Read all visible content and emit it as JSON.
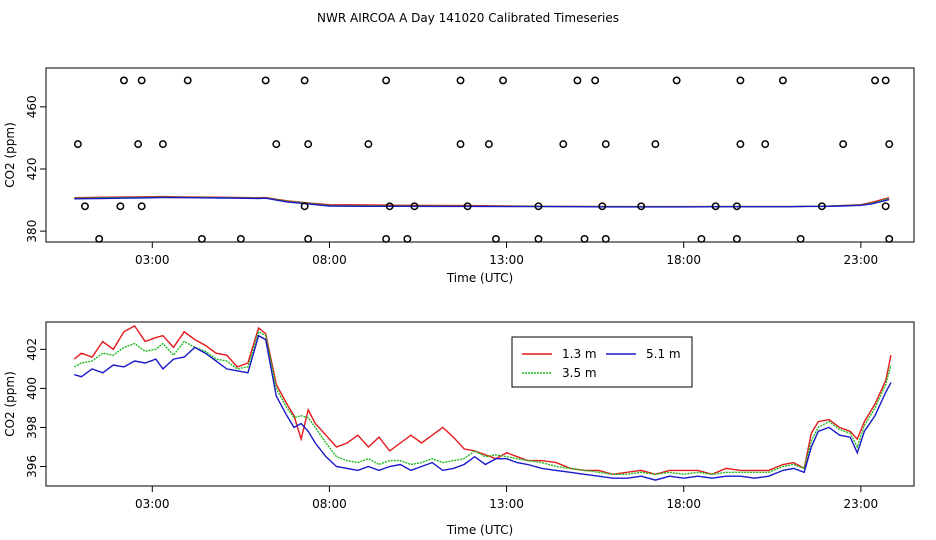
{
  "chart_data": [
    {
      "type": "scatter",
      "title": "NWR AIRCOA A  Day 141020  Calibrated Timeseries",
      "xlabel": "Time (UTC)",
      "ylabel": "CO2 (ppm)",
      "xlim": [
        0,
        24.5
      ],
      "ylim": [
        373,
        485
      ],
      "xticks": [
        3,
        8,
        13,
        18,
        23
      ],
      "xtick_labels": [
        "03:00",
        "08:00",
        "13:00",
        "18:00",
        "23:00"
      ],
      "yticks": [
        380,
        420,
        460
      ],
      "ytick_labels": [
        "380",
        "420",
        "460"
      ],
      "calibration_points": [
        [
          1.5,
          375
        ],
        [
          4.4,
          375
        ],
        [
          5.5,
          375
        ],
        [
          7.4,
          375
        ],
        [
          9.6,
          375
        ],
        [
          10.2,
          375
        ],
        [
          12.7,
          375
        ],
        [
          13.9,
          375
        ],
        [
          15.2,
          375
        ],
        [
          15.8,
          375
        ],
        [
          18.5,
          375
        ],
        [
          19.5,
          375
        ],
        [
          21.3,
          375
        ],
        [
          23.8,
          375
        ],
        [
          1.1,
          396
        ],
        [
          2.1,
          396
        ],
        [
          2.7,
          396
        ],
        [
          7.3,
          396
        ],
        [
          9.7,
          396
        ],
        [
          10.4,
          396
        ],
        [
          11.9,
          396
        ],
        [
          13.9,
          396
        ],
        [
          15.7,
          396
        ],
        [
          16.8,
          396
        ],
        [
          18.9,
          396
        ],
        [
          19.5,
          396
        ],
        [
          21.9,
          396
        ],
        [
          23.7,
          396
        ],
        [
          0.9,
          436
        ],
        [
          2.6,
          436
        ],
        [
          3.3,
          436
        ],
        [
          6.5,
          436
        ],
        [
          7.4,
          436
        ],
        [
          9.1,
          436
        ],
        [
          11.7,
          436
        ],
        [
          12.5,
          436
        ],
        [
          14.6,
          436
        ],
        [
          15.8,
          436
        ],
        [
          17.2,
          436
        ],
        [
          19.6,
          436
        ],
        [
          20.3,
          436
        ],
        [
          22.5,
          436
        ],
        [
          23.8,
          436
        ],
        [
          2.2,
          477
        ],
        [
          2.7,
          477
        ],
        [
          4.0,
          477
        ],
        [
          6.2,
          477
        ],
        [
          7.3,
          477
        ],
        [
          9.6,
          477
        ],
        [
          11.7,
          477
        ],
        [
          12.9,
          477
        ],
        [
          15.0,
          477
        ],
        [
          15.5,
          477
        ],
        [
          17.8,
          477
        ],
        [
          19.6,
          477
        ],
        [
          20.8,
          477
        ],
        [
          23.4,
          477
        ],
        [
          23.7,
          477
        ]
      ],
      "series": [
        {
          "name": "1.3 m",
          "color": "#e41a1c",
          "x": [
            0.8,
            1.5,
            2.5,
            3.3,
            4.0,
            5.0,
            6.0,
            6.2,
            6.8,
            7.4,
            8.0,
            9.0,
            10.0,
            11.0,
            12.0,
            13.0,
            14.0,
            15.0,
            16.0,
            17.0,
            18.0,
            19.0,
            20.0,
            21.0,
            21.5,
            22.0,
            22.5,
            23.0,
            23.3,
            23.8
          ],
          "y": [
            401.5,
            401.8,
            402.0,
            402.2,
            402.0,
            401.8,
            401.5,
            401.6,
            399.5,
            398.2,
            397.0,
            396.9,
            396.6,
            396.5,
            396.4,
            396.2,
            396.0,
            395.9,
            395.8,
            395.8,
            395.8,
            395.8,
            395.8,
            395.8,
            396.0,
            396.0,
            396.5,
            397.0,
            398.5,
            401.5
          ]
        },
        {
          "name": "3.5 m",
          "color": "#1fb81f",
          "x": [
            0.8,
            1.5,
            2.5,
            3.3,
            4.0,
            5.0,
            6.0,
            6.2,
            6.8,
            7.4,
            8.0,
            9.0,
            10.0,
            11.0,
            12.0,
            13.0,
            14.0,
            15.0,
            16.0,
            17.0,
            18.0,
            19.0,
            20.0,
            21.0,
            21.5,
            22.0,
            22.5,
            23.0,
            23.3,
            23.8
          ],
          "y": [
            401.2,
            401.5,
            401.7,
            401.9,
            401.8,
            401.5,
            401.3,
            401.4,
            399.2,
            398.0,
            396.5,
            396.3,
            396.2,
            396.2,
            396.1,
            396.0,
            395.9,
            395.8,
            395.8,
            395.7,
            395.7,
            395.8,
            395.8,
            395.8,
            396.0,
            396.0,
            396.4,
            396.8,
            398.0,
            401.0
          ]
        },
        {
          "name": "5.1 m",
          "color": "#1a1ac8",
          "x": [
            0.8,
            1.5,
            2.5,
            3.3,
            4.0,
            5.0,
            6.0,
            6.2,
            6.8,
            7.4,
            8.0,
            9.0,
            10.0,
            11.0,
            12.0,
            13.0,
            14.0,
            15.0,
            16.0,
            17.0,
            18.0,
            19.0,
            20.0,
            21.0,
            21.5,
            22.0,
            22.5,
            23.0,
            23.3,
            23.8
          ],
          "y": [
            400.8,
            401.0,
            401.3,
            401.6,
            401.5,
            401.3,
            401.0,
            401.2,
            398.8,
            397.5,
            396.2,
            396.0,
            396.0,
            395.9,
            395.9,
            395.8,
            395.8,
            395.7,
            395.6,
            395.6,
            395.6,
            395.7,
            395.7,
            395.7,
            395.9,
            395.9,
            396.2,
            396.6,
            397.5,
            400.3
          ]
        }
      ]
    },
    {
      "type": "line",
      "xlabel": "Time (UTC)",
      "ylabel": "CO2 (ppm)",
      "xlim": [
        0,
        24.5
      ],
      "ylim": [
        395.0,
        403.4
      ],
      "xticks": [
        3,
        8,
        13,
        18,
        23
      ],
      "xtick_labels": [
        "03:00",
        "08:00",
        "13:00",
        "18:00",
        "23:00"
      ],
      "yticks": [
        396,
        398,
        400,
        402
      ],
      "ytick_labels": [
        "396",
        "398",
        "400",
        "402"
      ],
      "legend": {
        "position": "top-center",
        "entries": [
          "1.3 m",
          "3.5 m",
          "5.1 m"
        ]
      },
      "series": [
        {
          "name": "1.3 m",
          "color": "#e41a1c",
          "x": [
            0.8,
            1.0,
            1.3,
            1.6,
            1.9,
            2.2,
            2.5,
            2.8,
            3.1,
            3.3,
            3.6,
            3.9,
            4.2,
            4.5,
            4.8,
            5.1,
            5.4,
            5.7,
            6.0,
            6.2,
            6.5,
            6.8,
            7.0,
            7.2,
            7.4,
            7.6,
            7.9,
            8.2,
            8.5,
            8.8,
            9.1,
            9.4,
            9.7,
            10.0,
            10.3,
            10.6,
            10.9,
            11.2,
            11.5,
            11.8,
            12.1,
            12.4,
            12.7,
            13.0,
            13.3,
            13.6,
            14.0,
            14.4,
            14.8,
            15.2,
            15.6,
            16.0,
            16.4,
            16.8,
            17.2,
            17.6,
            18.0,
            18.4,
            18.8,
            19.2,
            19.6,
            20.0,
            20.4,
            20.8,
            21.1,
            21.4,
            21.6,
            21.8,
            22.1,
            22.4,
            22.7,
            22.9,
            23.1,
            23.4,
            23.7,
            23.85
          ],
          "y": [
            401.5,
            401.8,
            401.6,
            402.4,
            402.0,
            402.9,
            403.2,
            402.4,
            402.6,
            402.7,
            402.1,
            402.9,
            402.5,
            402.2,
            401.8,
            401.7,
            401.1,
            401.3,
            403.1,
            402.8,
            400.2,
            399.2,
            398.6,
            397.4,
            398.9,
            398.2,
            397.6,
            397.0,
            397.2,
            397.6,
            397.0,
            397.5,
            396.8,
            397.2,
            397.6,
            397.2,
            397.6,
            398.0,
            397.5,
            396.9,
            396.8,
            396.6,
            396.4,
            396.7,
            396.5,
            396.3,
            396.3,
            396.2,
            395.9,
            395.8,
            395.8,
            395.6,
            395.7,
            395.8,
            395.6,
            395.8,
            395.8,
            395.8,
            395.6,
            395.9,
            395.8,
            395.8,
            395.8,
            396.1,
            396.2,
            395.9,
            397.7,
            398.3,
            398.4,
            398.0,
            397.8,
            397.4,
            398.3,
            399.2,
            400.4,
            401.7
          ]
        },
        {
          "name": "3.5 m",
          "color": "#1fb81f",
          "x": [
            0.8,
            1.0,
            1.3,
            1.6,
            1.9,
            2.2,
            2.5,
            2.8,
            3.1,
            3.3,
            3.6,
            3.9,
            4.2,
            4.5,
            4.8,
            5.1,
            5.4,
            5.7,
            6.0,
            6.2,
            6.5,
            6.8,
            7.0,
            7.2,
            7.4,
            7.6,
            7.9,
            8.2,
            8.5,
            8.8,
            9.1,
            9.4,
            9.7,
            10.0,
            10.3,
            10.6,
            10.9,
            11.2,
            11.5,
            11.8,
            12.1,
            12.4,
            12.7,
            13.0,
            13.3,
            13.6,
            14.0,
            14.4,
            14.8,
            15.2,
            15.6,
            16.0,
            16.4,
            16.8,
            17.2,
            17.6,
            18.0,
            18.4,
            18.8,
            19.2,
            19.6,
            20.0,
            20.4,
            20.8,
            21.1,
            21.4,
            21.6,
            21.8,
            22.1,
            22.4,
            22.7,
            22.9,
            23.1,
            23.4,
            23.7,
            23.85
          ],
          "y": [
            401.1,
            401.3,
            401.4,
            401.8,
            401.7,
            402.1,
            402.3,
            401.9,
            402.0,
            402.3,
            401.7,
            402.4,
            402.1,
            401.9,
            401.5,
            401.4,
            401.0,
            401.1,
            402.9,
            402.7,
            400.0,
            399.0,
            398.5,
            398.6,
            398.5,
            398.0,
            397.2,
            396.5,
            396.3,
            396.2,
            396.4,
            396.1,
            396.3,
            396.3,
            396.1,
            396.2,
            396.4,
            396.2,
            396.3,
            396.4,
            396.8,
            396.5,
            396.6,
            396.5,
            396.4,
            396.3,
            396.2,
            396.0,
            395.9,
            395.8,
            395.7,
            395.6,
            395.6,
            395.7,
            395.6,
            395.7,
            395.6,
            395.7,
            395.6,
            395.7,
            395.7,
            395.7,
            395.7,
            396.0,
            396.1,
            395.9,
            397.3,
            398.0,
            398.3,
            397.9,
            397.7,
            397.0,
            398.1,
            399.0,
            400.2,
            401.2
          ]
        },
        {
          "name": "5.1 m",
          "color": "#1a1ac8",
          "x": [
            0.8,
            1.0,
            1.3,
            1.6,
            1.9,
            2.2,
            2.5,
            2.8,
            3.1,
            3.3,
            3.6,
            3.9,
            4.2,
            4.5,
            4.8,
            5.1,
            5.4,
            5.7,
            6.0,
            6.2,
            6.5,
            6.8,
            7.0,
            7.2,
            7.4,
            7.6,
            7.9,
            8.2,
            8.5,
            8.8,
            9.1,
            9.4,
            9.7,
            10.0,
            10.3,
            10.6,
            10.9,
            11.2,
            11.5,
            11.8,
            12.1,
            12.4,
            12.7,
            13.0,
            13.3,
            13.6,
            14.0,
            14.4,
            14.8,
            15.2,
            15.6,
            16.0,
            16.4,
            16.8,
            17.2,
            17.6,
            18.0,
            18.4,
            18.8,
            19.2,
            19.6,
            20.0,
            20.4,
            20.8,
            21.1,
            21.4,
            21.6,
            21.8,
            22.1,
            22.4,
            22.7,
            22.9,
            23.1,
            23.4,
            23.7,
            23.85
          ],
          "y": [
            400.7,
            400.6,
            401.0,
            400.8,
            401.2,
            401.1,
            401.4,
            401.3,
            401.5,
            401.0,
            401.5,
            401.6,
            402.1,
            401.8,
            401.4,
            401.0,
            400.9,
            400.8,
            402.7,
            402.5,
            399.6,
            398.6,
            398.0,
            398.2,
            397.8,
            397.2,
            396.5,
            396.0,
            395.9,
            395.8,
            396.0,
            395.8,
            396.0,
            396.1,
            395.8,
            396.0,
            396.2,
            395.8,
            395.9,
            396.1,
            396.5,
            396.1,
            396.4,
            396.4,
            396.2,
            396.1,
            395.9,
            395.8,
            395.7,
            395.6,
            395.5,
            395.4,
            395.4,
            395.5,
            395.3,
            395.5,
            395.4,
            395.5,
            395.4,
            395.5,
            395.5,
            395.4,
            395.5,
            395.8,
            395.9,
            395.7,
            397.0,
            397.8,
            398.0,
            397.6,
            397.5,
            396.7,
            397.8,
            398.6,
            399.8,
            400.3
          ]
        }
      ]
    }
  ]
}
